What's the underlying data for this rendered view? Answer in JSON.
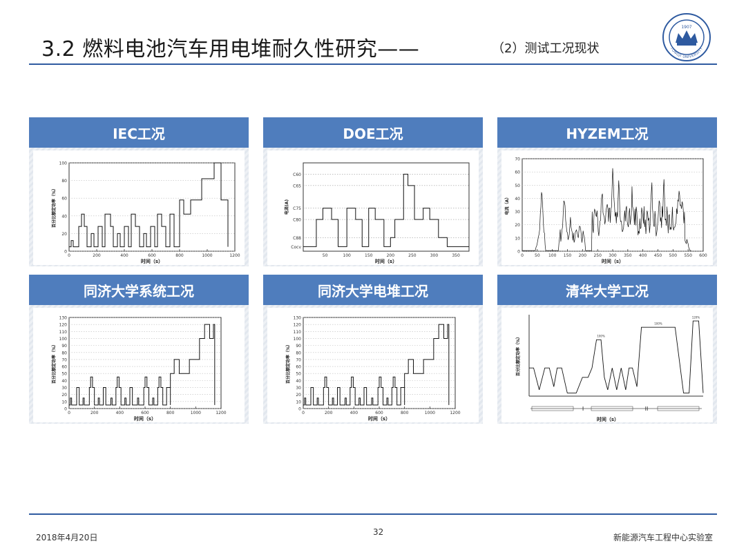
{
  "header": {
    "title": "3.2 燃料电池汽车用电堆耐久性研究——",
    "subtitle": "（2）测试工况现状",
    "logo_text": [
      "1907",
      "TONGJI UNIVERSITY"
    ]
  },
  "panels": [
    {
      "title": "IEC工况",
      "chart_data": {
        "type": "line",
        "xlabel": "时间（s）",
        "ylabel": "百分比额定功率（%）",
        "xlim": [
          0,
          1200
        ],
        "ylim": [
          0,
          100
        ],
        "xticks": [
          0,
          200,
          400,
          600,
          800,
          1000,
          1200
        ],
        "yticks": [
          0,
          20,
          40,
          60,
          80,
          100
        ],
        "series": [
          {
            "x": [
              0,
              15,
              15,
              30,
              30,
              70,
              70,
              90,
              90,
              110,
              110,
              130,
              130,
              160,
              160,
              180,
              180,
              210,
              210,
              240,
              240,
              260,
              260,
              300,
              300,
              320,
              320,
              350,
              350,
              370,
              370,
              400,
              400,
              430,
              430,
              450,
              450,
              480,
              480,
              510,
              510,
              540,
              540,
              560,
              560,
              590,
              590,
              620,
              620,
              640,
              640,
              670,
              670,
              700,
              700,
              730,
              730,
              760,
              760,
              800,
              800,
              830,
              830,
              880,
              880,
              960,
              960,
              1050,
              1050,
              1100,
              1100,
              1150,
              1150
            ],
            "y": [
              5,
              5,
              12,
              12,
              5,
              5,
              28,
              28,
              42,
              42,
              28,
              28,
              5,
              5,
              20,
              20,
              5,
              5,
              28,
              28,
              5,
              5,
              42,
              42,
              28,
              28,
              5,
              5,
              20,
              20,
              5,
              5,
              28,
              28,
              5,
              5,
              42,
              42,
              28,
              28,
              5,
              5,
              20,
              20,
              5,
              5,
              28,
              28,
              5,
              5,
              42,
              42,
              28,
              28,
              5,
              5,
              42,
              42,
              5,
              5,
              58,
              58,
              42,
              42,
              58,
              58,
              82,
              82,
              100,
              100,
              58,
              58,
              5
            ]
          }
        ]
      }
    },
    {
      "title": "DOE工况",
      "chart_data": {
        "type": "line",
        "xlabel": "时间（s）",
        "ylabel": "电流(A)",
        "xlim": [
          0,
          380
        ],
        "xticks": [
          50,
          100,
          150,
          200,
          250,
          300,
          350
        ],
        "yticks": [
          "C60",
          "C65",
          "C75",
          "C80",
          "C88",
          "Cocv"
        ],
        "ytick_values": [
          60,
          65,
          75,
          80,
          88,
          92
        ],
        "series": [
          {
            "x": [
              0,
              30,
              30,
              45,
              45,
              65,
              65,
              80,
              80,
              100,
              100,
              120,
              120,
              135,
              135,
              150,
              150,
              165,
              165,
              185,
              185,
              200,
              200,
              210,
              210,
              230,
              230,
              240,
              240,
              255,
              255,
              275,
              275,
              290,
              290,
              310,
              310,
              330,
              330,
              380
            ],
            "y": [
              92,
              92,
              80,
              80,
              75,
              75,
              80,
              80,
              92,
              92,
              75,
              75,
              80,
              80,
              92,
              92,
              75,
              75,
              80,
              80,
              92,
              92,
              88,
              88,
              80,
              80,
              60,
              60,
              65,
              65,
              80,
              80,
              75,
              75,
              80,
              80,
              88,
              88,
              92,
              92
            ]
          }
        ]
      }
    },
    {
      "title": "HYZEM工况",
      "chart_data": {
        "type": "line",
        "xlabel": "时间（s）",
        "ylabel": "电流（A）",
        "xlim": [
          0,
          600
        ],
        "ylim": [
          0,
          70
        ],
        "xticks": [
          0,
          50,
          100,
          150,
          200,
          250,
          300,
          350,
          400,
          450,
          500,
          550,
          600
        ],
        "yticks": [
          0,
          10,
          20,
          30,
          40,
          50,
          60,
          70
        ]
      }
    },
    {
      "title": "同济大学系统工况",
      "chart_data": {
        "type": "line",
        "xlabel": "时间（s）",
        "ylabel": "百分比额定功率（%）",
        "xlim": [
          0,
          1200
        ],
        "ylim": [
          0,
          130
        ],
        "xticks": [
          0,
          200,
          400,
          600,
          800,
          1000,
          1200
        ],
        "yticks": [
          0,
          10,
          20,
          30,
          40,
          50,
          60,
          70,
          80,
          90,
          100,
          110,
          120,
          130
        ]
      }
    },
    {
      "title": "同济大学电堆工况",
      "chart_data": {
        "type": "line",
        "xlabel": "时间（s）",
        "ylabel": "百分比额定功率（%）",
        "xlim": [
          0,
          1200
        ],
        "ylim": [
          0,
          130
        ],
        "xticks": [
          0,
          200,
          400,
          600,
          800,
          1000,
          1200
        ],
        "yticks": [
          0,
          10,
          20,
          30,
          40,
          50,
          60,
          70,
          80,
          90,
          100,
          110,
          120,
          130
        ]
      }
    },
    {
      "title": "清华大学工况",
      "chart_data": {
        "type": "line",
        "xlabel": "时间（s）",
        "ylabel": "百分比额定功率（%）",
        "phase_labels": [
          "I",
          "II"
        ],
        "annotations": [
          "100%",
          "100%",
          "120%"
        ]
      }
    }
  ],
  "footer": {
    "date": "2018年4月20日",
    "page": "32",
    "lab": "新能源汽车工程中心实验室"
  },
  "colors": {
    "accent": "#4f7dbd",
    "rule": "#2e5aa0"
  }
}
